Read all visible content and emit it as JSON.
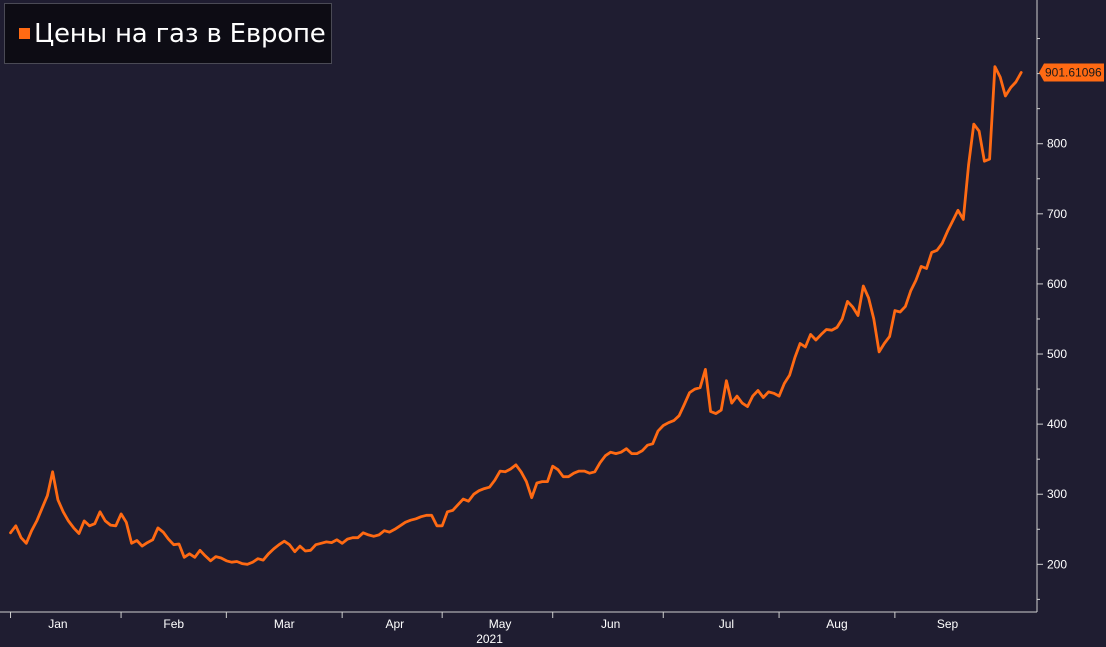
{
  "legend": {
    "label": "Цены на газ в Европе",
    "color": "#ff6a13"
  },
  "last_value_label": "901.61096",
  "colors": {
    "background": "#1f1d31",
    "line": "#ff6a13",
    "axis": "#cfcfcf"
  },
  "chart_data": {
    "type": "line",
    "series": [
      {
        "name": "Цены на газ в Европе"
      }
    ],
    "y_ticks": [
      "200",
      "300",
      "400",
      "500",
      "600",
      "700",
      "800"
    ],
    "ylim": [
      132,
      1005
    ],
    "x_ticks": [
      "Jan",
      "Feb",
      "Mar",
      "Apr",
      "May",
      "Jun",
      "Jul",
      "Aug",
      "Sep"
    ],
    "x_year": "2021",
    "x_range": [
      -2,
      195
    ],
    "points": [
      [
        0,
        245
      ],
      [
        1,
        255
      ],
      [
        2,
        238
      ],
      [
        3,
        230
      ],
      [
        4,
        248
      ],
      [
        5,
        262
      ],
      [
        6,
        280
      ],
      [
        7,
        298
      ],
      [
        8,
        332
      ],
      [
        9,
        292
      ],
      [
        10,
        275
      ],
      [
        11,
        262
      ],
      [
        12,
        252
      ],
      [
        13,
        244
      ],
      [
        14,
        262
      ],
      [
        15,
        255
      ],
      [
        16,
        258
      ],
      [
        17,
        275
      ],
      [
        18,
        262
      ],
      [
        19,
        256
      ],
      [
        20,
        255
      ],
      [
        21,
        272
      ],
      [
        22,
        260
      ],
      [
        23,
        230
      ],
      [
        24,
        234
      ],
      [
        25,
        226
      ],
      [
        26,
        231
      ],
      [
        27,
        235
      ],
      [
        28,
        252
      ],
      [
        29,
        246
      ],
      [
        30,
        236
      ],
      [
        31,
        228
      ],
      [
        32,
        229
      ],
      [
        33,
        210
      ],
      [
        34,
        215
      ],
      [
        35,
        210
      ],
      [
        36,
        220
      ],
      [
        37,
        212
      ],
      [
        38,
        205
      ],
      [
        39,
        211
      ],
      [
        40,
        209
      ],
      [
        41,
        205
      ],
      [
        42,
        203
      ],
      [
        43,
        204
      ],
      [
        44,
        201
      ],
      [
        45,
        200
      ],
      [
        46,
        203
      ],
      [
        47,
        208
      ],
      [
        48,
        206
      ],
      [
        49,
        215
      ],
      [
        50,
        222
      ],
      [
        51,
        228
      ],
      [
        52,
        233
      ],
      [
        53,
        228
      ],
      [
        54,
        218
      ],
      [
        55,
        226
      ],
      [
        56,
        219
      ],
      [
        57,
        220
      ],
      [
        58,
        228
      ],
      [
        59,
        230
      ],
      [
        60,
        232
      ],
      [
        61,
        231
      ],
      [
        62,
        235
      ],
      [
        63,
        230
      ],
      [
        64,
        236
      ],
      [
        65,
        238
      ],
      [
        66,
        238
      ],
      [
        67,
        245
      ],
      [
        68,
        242
      ],
      [
        69,
        240
      ],
      [
        70,
        242
      ],
      [
        71,
        248
      ],
      [
        72,
        246
      ],
      [
        73,
        250
      ],
      [
        74,
        255
      ],
      [
        75,
        260
      ],
      [
        76,
        263
      ],
      [
        77,
        265
      ],
      [
        78,
        268
      ],
      [
        79,
        270
      ],
      [
        80,
        270
      ],
      [
        81,
        255
      ],
      [
        82,
        255
      ],
      [
        83,
        275
      ],
      [
        84,
        277
      ],
      [
        85,
        285
      ],
      [
        86,
        293
      ],
      [
        87,
        290
      ],
      [
        88,
        300
      ],
      [
        89,
        305
      ],
      [
        90,
        308
      ],
      [
        91,
        310
      ],
      [
        92,
        320
      ],
      [
        93,
        333
      ],
      [
        94,
        332
      ],
      [
        95,
        336
      ],
      [
        96,
        342
      ],
      [
        97,
        332
      ],
      [
        98,
        318
      ],
      [
        99,
        295
      ],
      [
        100,
        316
      ],
      [
        101,
        318
      ],
      [
        102,
        318
      ],
      [
        103,
        340
      ],
      [
        104,
        335
      ],
      [
        105,
        325
      ],
      [
        106,
        325
      ],
      [
        107,
        330
      ],
      [
        108,
        333
      ],
      [
        109,
        333
      ],
      [
        110,
        330
      ],
      [
        111,
        332
      ],
      [
        112,
        345
      ],
      [
        113,
        355
      ],
      [
        114,
        360
      ],
      [
        115,
        358
      ],
      [
        116,
        360
      ],
      [
        117,
        365
      ],
      [
        118,
        358
      ],
      [
        119,
        358
      ],
      [
        120,
        362
      ],
      [
        121,
        370
      ],
      [
        122,
        372
      ],
      [
        123,
        390
      ],
      [
        124,
        398
      ],
      [
        125,
        402
      ],
      [
        126,
        405
      ],
      [
        127,
        412
      ],
      [
        128,
        428
      ],
      [
        129,
        445
      ],
      [
        130,
        450
      ],
      [
        131,
        452
      ],
      [
        132,
        478
      ],
      [
        133,
        418
      ],
      [
        134,
        415
      ],
      [
        135,
        420
      ],
      [
        136,
        462
      ],
      [
        137,
        430
      ],
      [
        138,
        440
      ],
      [
        139,
        430
      ],
      [
        140,
        425
      ],
      [
        141,
        440
      ],
      [
        142,
        448
      ],
      [
        143,
        438
      ],
      [
        144,
        446
      ],
      [
        145,
        444
      ],
      [
        146,
        440
      ],
      [
        147,
        458
      ],
      [
        148,
        470
      ],
      [
        149,
        495
      ],
      [
        150,
        515
      ],
      [
        151,
        510
      ],
      [
        152,
        528
      ],
      [
        153,
        520
      ],
      [
        154,
        528
      ],
      [
        155,
        535
      ],
      [
        156,
        534
      ],
      [
        157,
        538
      ],
      [
        158,
        550
      ],
      [
        159,
        575
      ],
      [
        160,
        567
      ],
      [
        161,
        555
      ],
      [
        162,
        597
      ],
      [
        163,
        580
      ],
      [
        164,
        550
      ],
      [
        165,
        503
      ],
      [
        166,
        515
      ],
      [
        167,
        525
      ],
      [
        168,
        562
      ],
      [
        169,
        560
      ],
      [
        170,
        568
      ],
      [
        171,
        590
      ],
      [
        172,
        605
      ],
      [
        173,
        625
      ],
      [
        174,
        622
      ],
      [
        175,
        645
      ],
      [
        176,
        648
      ],
      [
        177,
        658
      ],
      [
        178,
        675
      ],
      [
        179,
        690
      ],
      [
        180,
        705
      ],
      [
        181,
        692
      ],
      [
        182,
        770
      ],
      [
        183,
        828
      ],
      [
        184,
        818
      ],
      [
        185,
        775
      ],
      [
        186,
        778
      ],
      [
        187,
        910
      ],
      [
        188,
        895
      ],
      [
        189,
        868
      ],
      [
        190,
        880
      ],
      [
        191,
        888
      ],
      [
        192,
        901.61
      ]
    ]
  }
}
